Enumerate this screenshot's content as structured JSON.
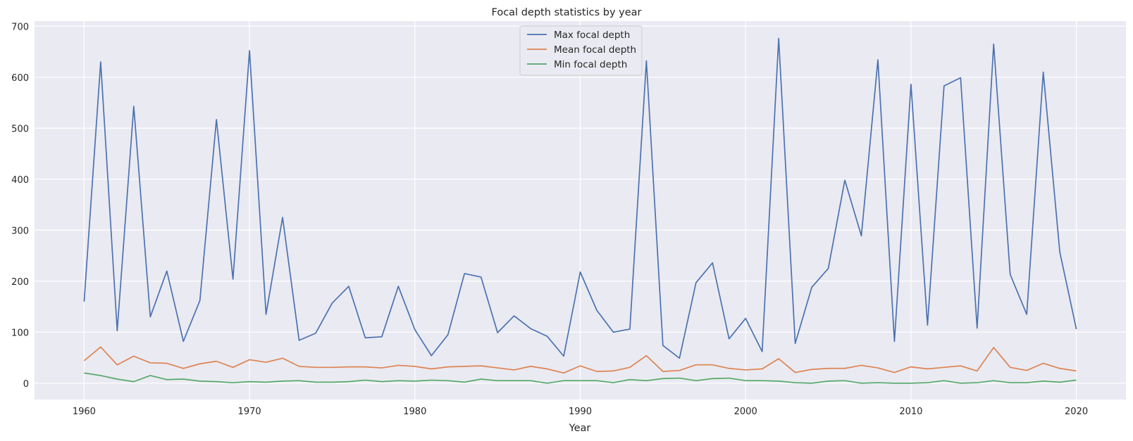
{
  "chart_data": {
    "type": "line",
    "title": "Focal depth statistics by year",
    "xlabel": "Year",
    "ylabel": "",
    "xlim": [
      1957,
      2023
    ],
    "ylim": [
      -32,
      710
    ],
    "x_ticks": [
      1960,
      1970,
      1980,
      1990,
      2000,
      2010,
      2020
    ],
    "y_ticks": [
      0,
      100,
      200,
      300,
      400,
      500,
      600,
      700
    ],
    "grid": true,
    "legend_position": "top-center",
    "x": [
      1960,
      1961,
      1962,
      1963,
      1964,
      1965,
      1966,
      1967,
      1968,
      1969,
      1970,
      1971,
      1972,
      1973,
      1974,
      1975,
      1976,
      1977,
      1978,
      1979,
      1980,
      1981,
      1982,
      1983,
      1984,
      1985,
      1986,
      1987,
      1988,
      1989,
      1990,
      1991,
      1992,
      1993,
      1994,
      1995,
      1996,
      1997,
      1998,
      1999,
      2000,
      2001,
      2002,
      2003,
      2004,
      2005,
      2006,
      2007,
      2008,
      2009,
      2010,
      2011,
      2012,
      2013,
      2014,
      2015,
      2016,
      2017,
      2018,
      2019,
      2020
    ],
    "series": [
      {
        "name": "Max focal depth",
        "color": "#4c72b0",
        "values": [
          160,
          630,
          103,
          543,
          130,
          220,
          82,
          162,
          517,
          204,
          652,
          135,
          325,
          84,
          98,
          157,
          190,
          89,
          91,
          190,
          105,
          54,
          95,
          215,
          208,
          99,
          132,
          107,
          92,
          53,
          218,
          143,
          100,
          106,
          632,
          74,
          49,
          197,
          236,
          87,
          127,
          62,
          676,
          78,
          188,
          225,
          398,
          289,
          634,
          82,
          586,
          114,
          583,
          599,
          108,
          665,
          213,
          135,
          610,
          257,
          106
        ]
      },
      {
        "name": "Mean focal depth",
        "color": "#dd8452",
        "values": [
          44,
          71,
          36,
          53,
          40,
          39,
          29,
          38,
          43,
          31,
          46,
          41,
          49,
          33,
          31,
          31,
          32,
          32,
          30,
          35,
          33,
          28,
          32,
          33,
          34,
          30,
          26,
          33,
          28,
          20,
          34,
          23,
          24,
          31,
          54,
          23,
          25,
          36,
          36,
          29,
          26,
          28,
          48,
          21,
          27,
          29,
          29,
          35,
          30,
          21,
          32,
          28,
          31,
          34,
          24,
          70,
          31,
          25,
          39,
          29,
          24
        ]
      },
      {
        "name": "Min focal depth",
        "color": "#55a868",
        "values": [
          20,
          15,
          8,
          3,
          15,
          7,
          8,
          4,
          3,
          1,
          3,
          2,
          4,
          5,
          2,
          2,
          3,
          6,
          3,
          5,
          4,
          6,
          5,
          2,
          8,
          5,
          5,
          5,
          0,
          5,
          5,
          5,
          1,
          7,
          5,
          9,
          10,
          5,
          9,
          10,
          5,
          5,
          4,
          1,
          0,
          4,
          5,
          0,
          1,
          0,
          0,
          1,
          5,
          0,
          1,
          5,
          1,
          1,
          4,
          2,
          6
        ]
      }
    ]
  }
}
